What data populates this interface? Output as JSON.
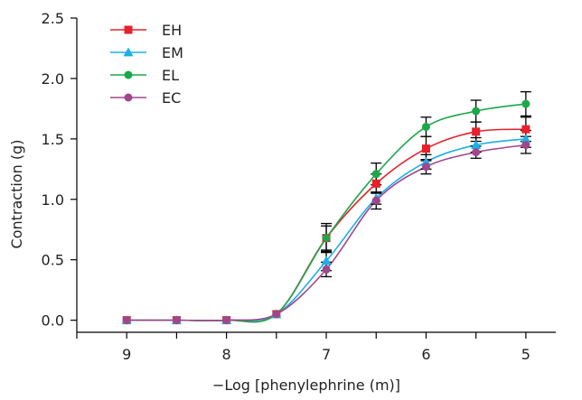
{
  "chart_data": {
    "type": "line",
    "xlabel": "−Log [phenylephrine (m)]",
    "ylabel": "Contraction (g)",
    "x": [
      9,
      8.5,
      8,
      7.5,
      7,
      6.5,
      6,
      5.5,
      5
    ],
    "x_ticks": [
      9,
      8,
      7,
      6,
      5
    ],
    "x_tick_labels": [
      "9",
      "8",
      "7",
      "6",
      "5"
    ],
    "xlim": [
      9.5,
      4.7
    ],
    "y_ticks": [
      0,
      0.5,
      1,
      1.5,
      2,
      2.5
    ],
    "y_tick_labels": [
      "0.0",
      "0.5",
      "1.0",
      "1.5",
      "2.0",
      "2.5"
    ],
    "ylim": [
      -0.1,
      2.5
    ],
    "grid": false,
    "legend_position": "top-left",
    "series": [
      {
        "name": "EH",
        "color": "#e8202a",
        "marker": "square",
        "values": [
          0,
          0,
          0,
          0.05,
          0.68,
          1.13,
          1.42,
          1.56,
          1.58
        ],
        "errors": [
          0,
          0,
          0,
          0,
          0.1,
          0.08,
          0.1,
          0.08,
          0.1
        ]
      },
      {
        "name": "EM",
        "color": "#1ab0e8",
        "marker": "triangle",
        "values": [
          0,
          0,
          0,
          0.05,
          0.49,
          1.01,
          1.31,
          1.45,
          1.5
        ],
        "errors": [
          0,
          0,
          0,
          0,
          0.08,
          0.05,
          0.06,
          0.06,
          0.07
        ]
      },
      {
        "name": "EL",
        "color": "#1aa84a",
        "marker": "circle",
        "values": [
          0,
          0,
          0,
          0.05,
          0.68,
          1.21,
          1.6,
          1.73,
          1.79
        ],
        "errors": [
          0,
          0,
          0,
          0,
          0.12,
          0.09,
          0.08,
          0.09,
          0.1
        ]
      },
      {
        "name": "EC",
        "color": "#a0468c",
        "marker": "circle",
        "values": [
          0,
          0,
          0,
          0.05,
          0.42,
          0.99,
          1.27,
          1.39,
          1.45
        ],
        "errors": [
          0,
          0,
          0,
          0,
          0.06,
          0.07,
          0.06,
          0.05,
          0.07
        ]
      }
    ]
  }
}
